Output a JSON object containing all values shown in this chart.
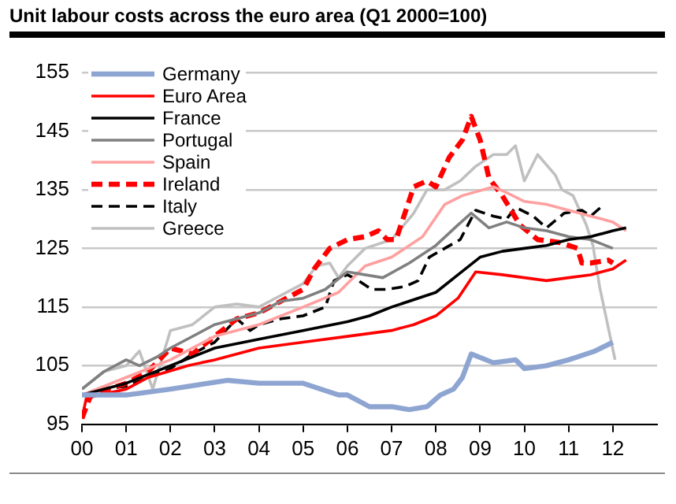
{
  "chart_data": {
    "type": "line",
    "title": "Unit labour costs across the euro area (Q1 2000=100)",
    "xlim": [
      2000,
      2013
    ],
    "xticks": [
      {
        "value": 2000,
        "label": "00"
      },
      {
        "value": 2001,
        "label": "01"
      },
      {
        "value": 2002,
        "label": "02"
      },
      {
        "value": 2003,
        "label": "03"
      },
      {
        "value": 2004,
        "label": "04"
      },
      {
        "value": 2005,
        "label": "05"
      },
      {
        "value": 2006,
        "label": "06"
      },
      {
        "value": 2007,
        "label": "07"
      },
      {
        "value": 2008,
        "label": "08"
      },
      {
        "value": 2009,
        "label": "09"
      },
      {
        "value": 2010,
        "label": "10"
      },
      {
        "value": 2011,
        "label": "11"
      },
      {
        "value": 2012,
        "label": "12"
      }
    ],
    "ylim": [
      95,
      155
    ],
    "yticks": [
      95,
      105,
      115,
      125,
      135,
      145,
      155
    ],
    "grid": "y",
    "legend": "top left",
    "marker": "none",
    "series": [
      {
        "name": "Germany",
        "color": "#8ea5d2",
        "x": [
          2000,
          2001,
          2002,
          2003.3,
          2004,
          2005,
          2005.8,
          2006,
          2006.5,
          2007,
          2007.4,
          2007.8,
          2008.1,
          2008.4,
          2008.6,
          2008.8,
          2009.3,
          2009.8,
          2010,
          2010.5,
          2011,
          2011.2,
          2011.6,
          2012
        ],
        "values": [
          100,
          100,
          101,
          102.5,
          102,
          102,
          100,
          100,
          98,
          98,
          97.5,
          98,
          100,
          101,
          103,
          107,
          105.5,
          106,
          104.5,
          105,
          106,
          106.5,
          107.5,
          109
        ]
      },
      {
        "name": "Euro Area",
        "color": "#ff0000",
        "x": [
          2000,
          2000.1,
          2001,
          2001.5,
          2002.4,
          2003,
          2004,
          2005,
          2006,
          2007,
          2007.5,
          2008,
          2008.5,
          2008.9,
          2009.5,
          2010,
          2010.5,
          2011,
          2011.5,
          2012,
          2012.3
        ],
        "values": [
          96,
          99.5,
          101,
          103,
          105,
          106,
          108,
          109,
          110,
          111,
          112,
          113.5,
          116.5,
          121,
          120.5,
          120,
          119.5,
          120,
          120.5,
          121.5,
          123
        ]
      },
      {
        "name": "France",
        "color": "#000000",
        "x": [
          2000,
          2001,
          2002,
          2003,
          2004,
          2005,
          2006,
          2006.5,
          2007,
          2008,
          2008.5,
          2009,
          2009.5,
          2010,
          2010.5,
          2011,
          2011.5,
          2012,
          2012.3
        ],
        "values": [
          100,
          102,
          105,
          108,
          109.5,
          111,
          112.5,
          113.5,
          115,
          117.5,
          120.5,
          123.5,
          124.5,
          125,
          125.5,
          126.5,
          127,
          128,
          128.5
        ]
      },
      {
        "name": "Portugal",
        "color": "#808080",
        "x": [
          2000,
          2000.5,
          2001,
          2001.3,
          2001.7,
          2002,
          2003,
          2004,
          2004.5,
          2005,
          2005.5,
          2006,
          2006.8,
          2007.4,
          2008,
          2008.5,
          2008.8,
          2009.2,
          2009.6,
          2010,
          2010.5,
          2011,
          2011.5,
          2012
        ],
        "values": [
          101,
          104,
          106,
          105,
          106.5,
          108,
          112,
          114,
          116,
          116.5,
          118,
          121,
          120,
          122.5,
          125.5,
          129,
          131,
          128.5,
          129.5,
          128.5,
          128,
          127,
          126.5,
          125
        ]
      },
      {
        "name": "Spain",
        "color": "#ffa0a0",
        "x": [
          2000,
          2001,
          2002,
          2003,
          2004,
          2005,
          2005.8,
          2006.4,
          2007,
          2007.7,
          2008.2,
          2008.6,
          2009.3,
          2009.6,
          2010,
          2010.5,
          2011,
          2011.5,
          2012,
          2012.3
        ],
        "values": [
          100,
          103,
          106,
          110,
          112,
          115,
          117.5,
          122,
          123.5,
          127,
          132.5,
          134,
          135.5,
          134.5,
          133,
          132.5,
          131.5,
          130.5,
          129.5,
          128
        ]
      },
      {
        "name": "Ireland",
        "color": "#ff0000",
        "line_style": "dashed",
        "x": [
          2000,
          2000.2,
          2001,
          2001.5,
          2002,
          2002.5,
          2003,
          2003.5,
          2004,
          2005,
          2005.25,
          2005.6,
          2006,
          2006.4,
          2006.7,
          2006.9,
          2007.1,
          2007.5,
          2007.8,
          2008,
          2008.3,
          2008.6,
          2008.8,
          2009,
          2009.2,
          2009.5,
          2009.9,
          2010.3,
          2010.8,
          2011.2,
          2011.3,
          2011.5,
          2011.9,
          2012
        ],
        "values": [
          96,
          100,
          102,
          104,
          108,
          107,
          110,
          113,
          114,
          118,
          121.5,
          125,
          126.5,
          127,
          128,
          126.5,
          126.5,
          135.5,
          136.5,
          135.5,
          140.5,
          143.5,
          147.5,
          143.5,
          137,
          134,
          129,
          126.5,
          126,
          125,
          122.5,
          122.5,
          123,
          122.5
        ]
      },
      {
        "name": "Italy",
        "color": "#000000",
        "line_style": "dashed",
        "x": [
          2000,
          2000.1,
          2000.5,
          2001,
          2001.5,
          2002,
          2002.5,
          2003,
          2003.5,
          2003.8,
          2004,
          2004.5,
          2005,
          2005.5,
          2005.7,
          2006,
          2006.25,
          2006.55,
          2006.9,
          2007.3,
          2007.6,
          2007.85,
          2008.2,
          2008.55,
          2008.9,
          2009.3,
          2009.6,
          2009.8,
          2010.2,
          2010.5,
          2010.9,
          2011.3,
          2011.5,
          2011.8
        ],
        "values": [
          96,
          99,
          101,
          101.5,
          103,
          104.5,
          107,
          109,
          113,
          111,
          112,
          113,
          113.5,
          115,
          119.5,
          120.5,
          119.5,
          118,
          118,
          118.5,
          119.5,
          123.5,
          125,
          126.5,
          131.5,
          130.5,
          130,
          132,
          130.5,
          128.5,
          131,
          131.5,
          130.5,
          132.5
        ]
      },
      {
        "name": "Greece",
        "color": "#c0c0c0",
        "x": [
          2000,
          2000.5,
          2001,
          2001.3,
          2001.6,
          2002,
          2002.5,
          2003,
          2003.5,
          2004,
          2004.5,
          2005,
          2005.3,
          2005.6,
          2005.8,
          2006,
          2006.4,
          2007,
          2007.5,
          2007.8,
          2008.2,
          2008.55,
          2008.9,
          2009.3,
          2009.6,
          2009.8,
          2010,
          2010.3,
          2010.7,
          2010.85,
          2011.1,
          2011.4,
          2011.55,
          2011.7,
          2012.05
        ],
        "values": [
          101,
          104,
          105,
          107.5,
          101,
          111,
          112,
          115,
          115.5,
          115,
          117,
          119,
          122,
          122.5,
          120,
          122,
          125,
          126.5,
          131,
          135,
          135,
          136.5,
          139,
          141,
          141,
          142.5,
          136.5,
          141,
          137.5,
          135,
          134,
          129,
          125.5,
          118.5,
          106
        ]
      }
    ]
  }
}
